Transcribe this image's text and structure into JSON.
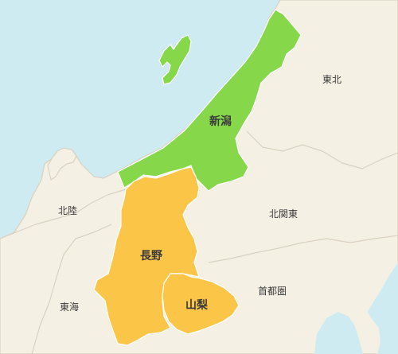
{
  "colors": {
    "sea": "#cdebf1",
    "land": "#f4f0e4",
    "border": "#d9d2c1",
    "niigata": "#86d84a",
    "nagano": "#fbc547",
    "yamanashi": "#fbc547",
    "pref_border": "#ffffff",
    "label": "#3b3b3b"
  },
  "regions": {
    "tohoku": "東北",
    "hokuriku": "北陸",
    "kitakanto": "北関東",
    "tokai": "東海",
    "shutoken": "首都圏"
  },
  "prefectures": {
    "niigata": "新潟",
    "nagano": "長野",
    "yamanashi": "山梨"
  }
}
